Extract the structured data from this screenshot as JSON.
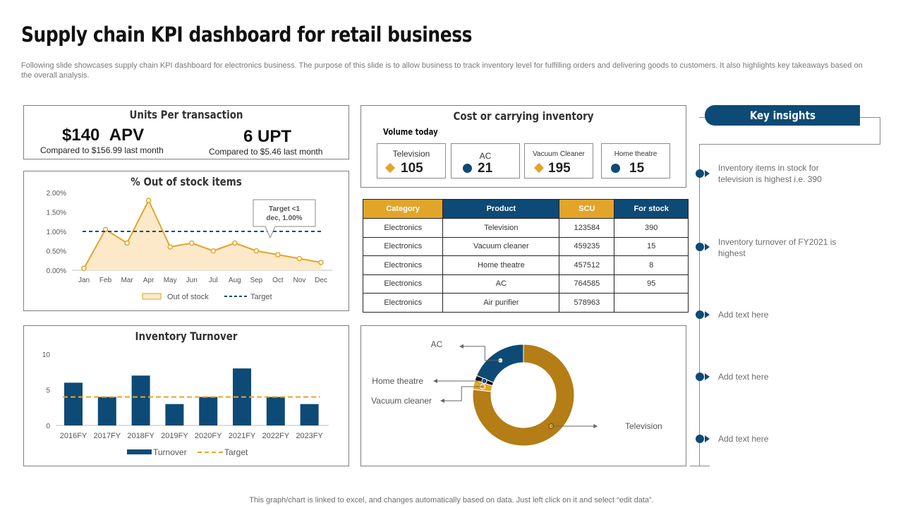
{
  "header": {
    "title": "Supply chain KPI dashboard for retail business",
    "subtitle": "Following slide showcases supply chain KPI dashboard for electronics business. The purpose of this slide is to allow business to track inventory level for fulfilling orders and delivering goods to customers. It also highlights key takeaways based on the overall analysis."
  },
  "units_per_transaction": {
    "title": "Units Per transaction",
    "apv_value": "$140",
    "apv_label": "APV",
    "apv_compare": "Compared to $156.99 last month",
    "upt_value": "6 UPT",
    "upt_compare": "Compared to $5.46 last month"
  },
  "cost_inventory": {
    "title": "Cost or carrying inventory",
    "volume_label": "Volume today",
    "items": [
      {
        "name": "Television",
        "value": "105",
        "icon": "diamond-icon"
      },
      {
        "name": "AC",
        "value": "21",
        "icon": "circle-icon"
      },
      {
        "name": "Vacuum Cleaner",
        "value": "195",
        "icon": "diamond-icon"
      },
      {
        "name": "Home theatre",
        "value": "15",
        "icon": "circle-icon"
      }
    ]
  },
  "table": {
    "headers": [
      "Category",
      "Product",
      "SCU",
      "For stock"
    ],
    "rows": [
      [
        "Electronics",
        "Television",
        "123584",
        "390"
      ],
      [
        "Electronics",
        "Vacuum cleaner",
        "459235",
        "15"
      ],
      [
        "Electronics",
        "Home theatre",
        "457512",
        "8"
      ],
      [
        "Electronics",
        "AC",
        "764585",
        "95"
      ],
      [
        "Electronics",
        "Air purifier",
        "578963",
        ""
      ]
    ]
  },
  "out_of_stock": {
    "title": "% Out of stock items",
    "callout": "Target <1 dec, 1.00%"
  },
  "inventory_turnover": {
    "title": "Inventory Turnover"
  },
  "key_insights": {
    "title": "Key insights",
    "items": [
      "Inventory  items in stock for television  is highest i.e. 390",
      "Inventory  turnover  of FY2021  is highest",
      "Add text here",
      "Add text here",
      "Add text here"
    ]
  },
  "footer": "This graph/chart is linked to excel,  and changes automatically based on data. Just left click on it and select “edit data”.",
  "colors": {
    "navy": "#0d4a75",
    "gold": "#e2a52a",
    "dark_gold": "#b47d16",
    "area_fill": "#fbe9c9"
  },
  "chart_data": [
    {
      "type": "area",
      "title": "% Out of stock items",
      "categories": [
        "Jan",
        "Feb",
        "Mar",
        "Apr",
        "May",
        "Jun",
        "Jul",
        "Aug",
        "Sep",
        "Oct",
        "Nov",
        "Dec"
      ],
      "series": [
        {
          "name": "Out of stock",
          "values": [
            0.05,
            1.05,
            0.7,
            1.8,
            0.6,
            0.7,
            0.5,
            0.7,
            0.5,
            0.4,
            0.3,
            0.2
          ]
        },
        {
          "name": "Target",
          "values": [
            1.0,
            1.0,
            1.0,
            1.0,
            1.0,
            1.0,
            1.0,
            1.0,
            1.0,
            1.0,
            1.0,
            1.0
          ]
        }
      ],
      "yticks": [
        "0.00%",
        "0.50%",
        "1.00%",
        "1.50%",
        "2.00%"
      ],
      "ylim": [
        0,
        2.0
      ],
      "legend": "bottom"
    },
    {
      "type": "bar",
      "title": "Inventory Turnover",
      "categories": [
        "2016FY",
        "2017FY",
        "2018FY",
        "2019FY",
        "2020FY",
        "2021FY",
        "2022FY",
        "2023FY"
      ],
      "series": [
        {
          "name": "Turnover",
          "values": [
            6,
            4,
            7,
            3,
            4,
            8,
            4,
            3
          ]
        },
        {
          "name": "Target",
          "values": [
            4,
            4,
            4,
            4,
            4,
            4,
            4,
            4
          ]
        }
      ],
      "yticks": [
        "0",
        "5",
        "10"
      ],
      "ylim": [
        0,
        10
      ],
      "legend": "bottom"
    },
    {
      "type": "pie",
      "title": "",
      "labels": [
        "Television",
        "Vacuum cleaner",
        "Home theatre",
        "AC"
      ],
      "values": [
        390,
        15,
        8,
        95
      ],
      "colors": [
        "#b47d16",
        "#e2a52a",
        "#111111",
        "#0d4a75"
      ]
    }
  ]
}
